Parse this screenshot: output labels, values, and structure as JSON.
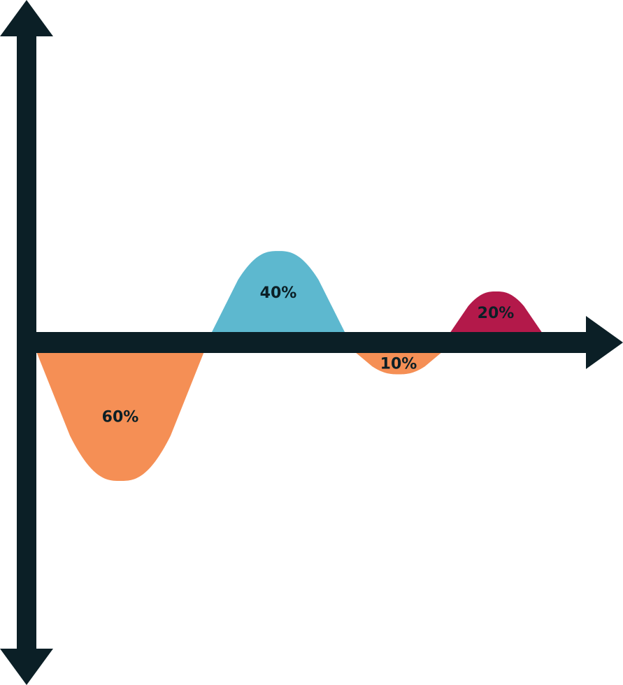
{
  "colors": {
    "axis": "#0b1f26",
    "orange": "#f58f55",
    "blue": "#5db8cf",
    "crimson": "#b3194a",
    "label": "#0b1f26"
  },
  "chart_data": {
    "type": "area",
    "title": "",
    "xlabel": "",
    "ylabel": "",
    "ylim": [
      -60,
      60
    ],
    "categories": [
      "",
      "",
      "",
      ""
    ],
    "series": [
      {
        "values": [
          -60,
          40,
          -10,
          20
        ],
        "labels": [
          "60%",
          "40%",
          "10%",
          "20%"
        ],
        "colors": [
          "#f58f55",
          "#5db8cf",
          "#f58f55",
          "#b3194a"
        ]
      }
    ],
    "grid": false,
    "legend": "none"
  }
}
